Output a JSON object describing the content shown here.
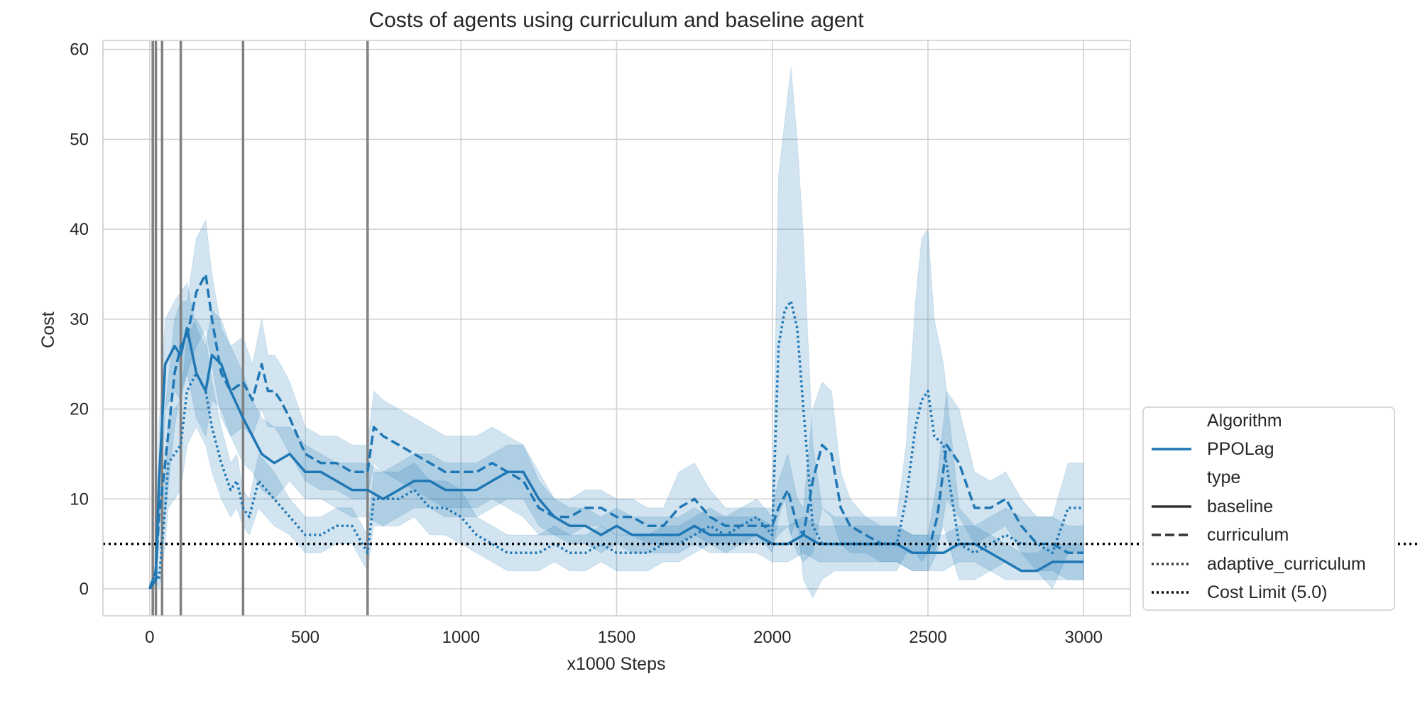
{
  "chart_data": {
    "type": "line",
    "title": "Costs of agents using curriculum and baseline agent",
    "xlabel": "x1000 Steps",
    "ylabel": "Cost",
    "xlim": [
      -150,
      3150
    ],
    "ylim": [
      -3,
      61
    ],
    "xticks": [
      0,
      500,
      1000,
      1500,
      2000,
      2500,
      3000
    ],
    "yticks": [
      0,
      10,
      20,
      30,
      40,
      50,
      60
    ],
    "grid": true,
    "legend_position": "outside-right-bottom",
    "colors": {
      "series": "#1f77b4",
      "band": "#1f77b4",
      "curriculum_lines": "#808080",
      "cost_limit": "#000000",
      "grid": "#d0d0d0"
    },
    "cost_limit": 5.0,
    "curriculum_change_steps": [
      10,
      20,
      40,
      100,
      300,
      700
    ],
    "legend": {
      "algorithm_header": "Algorithm",
      "algorithm_item": "PPOLag",
      "type_header": "type",
      "baseline": "baseline",
      "curriculum": "curriculum",
      "adaptive": "adaptive_curriculum",
      "cost_limit": "Cost Limit (5.0)"
    },
    "series": [
      {
        "name": "baseline",
        "style": "solid",
        "x": [
          0,
          20,
          30,
          50,
          80,
          100,
          120,
          150,
          180,
          200,
          230,
          260,
          300,
          330,
          360,
          400,
          450,
          500,
          550,
          600,
          650,
          700,
          750,
          800,
          850,
          900,
          950,
          1000,
          1050,
          1100,
          1150,
          1200,
          1250,
          1300,
          1350,
          1400,
          1450,
          1500,
          1550,
          1600,
          1650,
          1700,
          1750,
          1800,
          1850,
          1900,
          1950,
          2000,
          2050,
          2100,
          2150,
          2200,
          2250,
          2300,
          2350,
          2400,
          2450,
          2500,
          2550,
          2600,
          2650,
          2700,
          2750,
          2800,
          2850,
          2900,
          2950,
          3000
        ],
        "y": [
          0,
          1,
          12,
          25,
          27,
          26,
          29,
          24,
          22,
          26,
          25,
          22,
          19,
          17,
          15,
          14,
          15,
          13,
          13,
          12,
          11,
          11,
          10,
          11,
          12,
          12,
          11,
          11,
          11,
          12,
          13,
          13,
          10,
          8,
          7,
          7,
          6,
          7,
          6,
          6,
          6,
          6,
          7,
          6,
          6,
          6,
          6,
          5,
          5,
          6,
          5,
          5,
          5,
          5,
          5,
          5,
          4,
          4,
          4,
          5,
          5,
          4,
          3,
          2,
          2,
          3,
          3,
          3
        ],
        "upper": [
          0,
          2,
          18,
          30,
          32,
          33,
          34,
          29,
          27,
          31,
          30,
          27,
          24,
          21,
          19,
          18,
          18,
          16,
          15,
          14,
          14,
          14,
          13,
          14,
          15,
          15,
          14,
          14,
          14,
          15,
          16,
          16,
          13,
          10,
          9,
          9,
          8,
          9,
          8,
          8,
          8,
          8,
          9,
          8,
          8,
          8,
          8,
          7,
          7,
          8,
          7,
          7,
          7,
          7,
          7,
          7,
          6,
          6,
          6,
          7,
          7,
          6,
          5,
          4,
          4,
          5,
          5,
          5
        ],
        "lower": [
          0,
          0,
          6,
          20,
          22,
          21,
          24,
          19,
          17,
          21,
          20,
          17,
          14,
          13,
          11,
          10,
          12,
          10,
          10,
          9,
          8,
          8,
          7,
          8,
          9,
          9,
          8,
          8,
          8,
          9,
          10,
          10,
          7,
          6,
          5,
          5,
          4,
          5,
          4,
          4,
          4,
          4,
          5,
          4,
          4,
          4,
          4,
          3,
          3,
          4,
          3,
          3,
          3,
          3,
          3,
          3,
          2,
          2,
          2,
          3,
          3,
          2,
          1,
          1,
          1,
          1,
          1,
          1
        ]
      },
      {
        "name": "curriculum",
        "style": "dashed",
        "x": [
          0,
          20,
          30,
          50,
          80,
          100,
          120,
          150,
          180,
          200,
          230,
          260,
          300,
          330,
          360,
          380,
          400,
          420,
          450,
          500,
          550,
          600,
          650,
          700,
          720,
          750,
          800,
          850,
          900,
          950,
          1000,
          1050,
          1100,
          1150,
          1200,
          1250,
          1300,
          1350,
          1400,
          1450,
          1500,
          1550,
          1600,
          1650,
          1700,
          1750,
          1800,
          1850,
          1900,
          1950,
          2000,
          2020,
          2050,
          2080,
          2100,
          2130,
          2160,
          2190,
          2220,
          2250,
          2300,
          2350,
          2400,
          2450,
          2480,
          2500,
          2530,
          2560,
          2600,
          2650,
          2700,
          2750,
          2800,
          2850,
          2900,
          2950,
          3000
        ],
        "y": [
          0,
          2,
          8,
          14,
          24,
          27,
          28,
          33,
          35,
          30,
          24,
          22,
          23,
          21,
          25,
          22,
          22,
          21,
          19,
          15,
          14,
          14,
          13,
          13,
          18,
          17,
          16,
          15,
          14,
          13,
          13,
          13,
          14,
          13,
          12,
          9,
          8,
          8,
          9,
          9,
          8,
          8,
          7,
          7,
          9,
          10,
          8,
          7,
          7,
          7,
          7,
          9,
          11,
          7,
          6,
          12,
          16,
          15,
          9,
          7,
          6,
          5,
          5,
          4,
          4,
          4,
          8,
          16,
          14,
          9,
          9,
          10,
          7,
          5,
          5,
          4,
          4
        ],
        "upper": [
          0,
          3,
          12,
          20,
          30,
          32,
          32,
          39,
          41,
          35,
          29,
          27,
          28,
          25,
          30,
          26,
          26,
          25,
          23,
          18,
          17,
          17,
          16,
          16,
          22,
          21,
          20,
          19,
          18,
          17,
          17,
          17,
          18,
          17,
          16,
          12,
          10,
          10,
          11,
          11,
          10,
          10,
          9,
          9,
          13,
          14,
          11,
          9,
          9,
          9,
          9,
          12,
          15,
          10,
          9,
          20,
          23,
          22,
          13,
          10,
          8,
          7,
          7,
          6,
          6,
          6,
          12,
          22,
          20,
          13,
          12,
          13,
          10,
          8,
          8,
          7,
          7
        ],
        "lower": [
          0,
          1,
          4,
          8,
          18,
          22,
          24,
          27,
          29,
          25,
          19,
          17,
          18,
          17,
          20,
          18,
          18,
          17,
          15,
          12,
          11,
          11,
          10,
          10,
          14,
          13,
          12,
          11,
          10,
          9,
          9,
          9,
          10,
          9,
          8,
          6,
          6,
          6,
          7,
          7,
          6,
          6,
          5,
          5,
          5,
          6,
          5,
          5,
          5,
          5,
          5,
          6,
          7,
          4,
          3,
          4,
          9,
          8,
          5,
          4,
          4,
          3,
          3,
          2,
          2,
          2,
          4,
          10,
          8,
          5,
          6,
          7,
          4,
          2,
          2,
          1,
          1
        ]
      },
      {
        "name": "adaptive_curriculum",
        "style": "dotted",
        "x": [
          0,
          20,
          30,
          40,
          50,
          60,
          80,
          100,
          120,
          150,
          180,
          200,
          230,
          260,
          280,
          300,
          320,
          350,
          400,
          450,
          500,
          550,
          600,
          650,
          700,
          720,
          750,
          800,
          850,
          900,
          950,
          1000,
          1050,
          1100,
          1150,
          1200,
          1250,
          1300,
          1350,
          1400,
          1450,
          1500,
          1550,
          1600,
          1650,
          1700,
          1750,
          1800,
          1850,
          1900,
          1950,
          2000,
          2020,
          2040,
          2060,
          2080,
          2100,
          2130,
          2160,
          2200,
          2250,
          2300,
          2350,
          2400,
          2430,
          2460,
          2480,
          2500,
          2520,
          2550,
          2600,
          2650,
          2700,
          2750,
          2800,
          2850,
          2900,
          2950,
          3000
        ],
        "y": [
          0,
          2,
          1,
          5,
          9,
          14,
          15,
          16,
          22,
          24,
          22,
          18,
          14,
          11,
          12,
          9,
          8,
          12,
          10,
          8,
          6,
          6,
          7,
          7,
          4,
          10,
          10,
          10,
          11,
          9,
          9,
          8,
          6,
          5,
          4,
          4,
          4,
          5,
          4,
          4,
          5,
          4,
          4,
          4,
          5,
          5,
          6,
          7,
          6,
          7,
          8,
          6,
          27,
          31,
          32,
          29,
          20,
          7,
          5,
          5,
          5,
          5,
          5,
          5,
          10,
          18,
          21,
          22,
          17,
          16,
          5,
          4,
          5,
          6,
          5,
          5,
          4,
          9,
          9
        ],
        "upper": [
          0,
          3,
          2,
          8,
          13,
          19,
          20,
          21,
          28,
          30,
          28,
          23,
          18,
          14,
          15,
          11,
          10,
          15,
          13,
          10,
          8,
          8,
          9,
          9,
          6,
          13,
          13,
          13,
          14,
          12,
          12,
          11,
          8,
          7,
          6,
          6,
          6,
          7,
          6,
          6,
          7,
          6,
          6,
          6,
          7,
          7,
          8,
          9,
          8,
          9,
          10,
          8,
          46,
          52,
          58,
          50,
          39,
          16,
          9,
          8,
          8,
          8,
          8,
          8,
          16,
          32,
          39,
          40,
          30,
          25,
          9,
          7,
          8,
          9,
          8,
          8,
          8,
          14,
          14
        ],
        "lower": [
          0,
          1,
          0,
          2,
          5,
          9,
          10,
          11,
          16,
          18,
          16,
          13,
          10,
          8,
          9,
          7,
          6,
          9,
          7,
          6,
          4,
          4,
          5,
          5,
          2,
          7,
          7,
          7,
          8,
          6,
          6,
          5,
          4,
          3,
          2,
          2,
          2,
          3,
          2,
          2,
          3,
          2,
          2,
          2,
          3,
          3,
          4,
          5,
          4,
          5,
          6,
          4,
          8,
          10,
          6,
          8,
          1,
          -1,
          1,
          2,
          2,
          2,
          2,
          2,
          4,
          4,
          3,
          4,
          4,
          7,
          1,
          1,
          2,
          3,
          2,
          2,
          0,
          4,
          4
        ]
      }
    ]
  }
}
